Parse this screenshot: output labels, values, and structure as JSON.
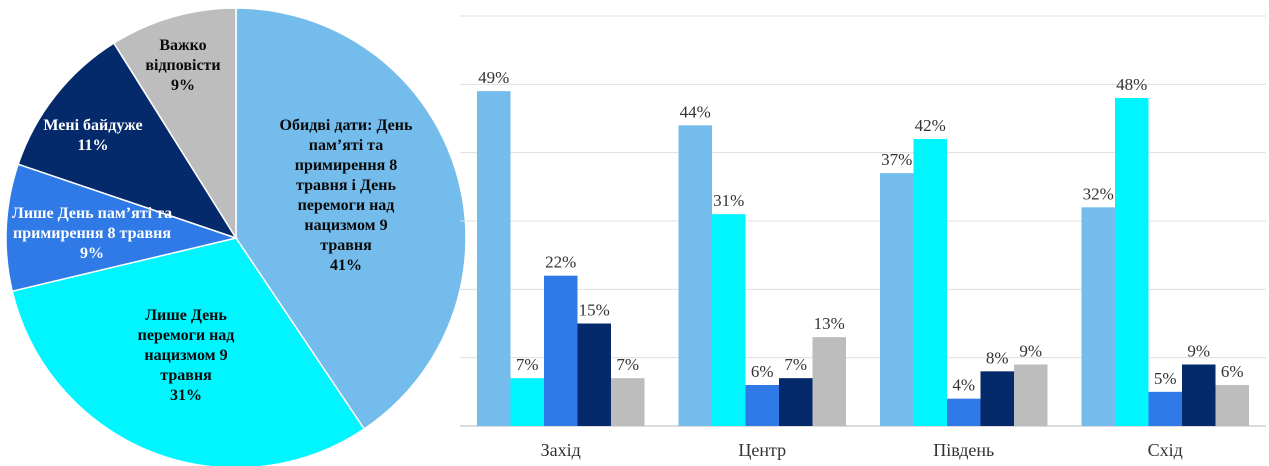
{
  "chart_data": [
    {
      "type": "pie",
      "slices": [
        {
          "label_lines": [
            "Обидві дати: День",
            "пам’яті та",
            "примирення 8",
            "травня і День",
            "перемоги над",
            "нацизмом 9",
            "травня"
          ],
          "value_text": "41%",
          "value": 41,
          "color": "#74bcec",
          "text_color": "#0a0a0a"
        },
        {
          "label_lines": [
            "Лише День",
            "перемоги над",
            "нацизмом 9",
            "травня"
          ],
          "value_text": "31%",
          "value": 31,
          "color": "#00f5ff",
          "text_color": "#0a0a0a"
        },
        {
          "label_lines": [
            "Лише День пам’яті та",
            "примирення 8 травня"
          ],
          "value_text": "9%",
          "value": 9,
          "color": "#2f7ae6",
          "text_color": "#ffffff"
        },
        {
          "label_lines": [
            "Мені байдуже"
          ],
          "value_text": "11%",
          "value": 11,
          "color": "#052a6c",
          "text_color": "#ffffff"
        },
        {
          "label_lines": [
            "Важко",
            "відповісти"
          ],
          "value_text": "9%",
          "value": 9,
          "color": "#bdbdbd",
          "text_color": "#0a0a0a"
        }
      ]
    },
    {
      "type": "bar",
      "categories": [
        "Захід",
        "Центр",
        "Південь",
        "Схід"
      ],
      "series": [
        {
          "values": [
            49,
            44,
            37,
            32
          ],
          "labels": [
            "49%",
            "44%",
            "37%",
            "32%"
          ],
          "color": "#74bcec"
        },
        {
          "values": [
            7,
            31,
            42,
            48
          ],
          "labels": [
            "7%",
            "31%",
            "42%",
            "48%"
          ],
          "color": "#00f5ff"
        },
        {
          "values": [
            22,
            6,
            4,
            5
          ],
          "labels": [
            "22%",
            "6%",
            "4%",
            "5%"
          ],
          "color": "#2f7ae6"
        },
        {
          "values": [
            15,
            7,
            8,
            9
          ],
          "labels": [
            "15%",
            "7%",
            "8%",
            "9%"
          ],
          "color": "#052a6c"
        },
        {
          "values": [
            7,
            13,
            9,
            6
          ],
          "labels": [
            "7%",
            "13%",
            "9%",
            "6%"
          ],
          "color": "#bdbdbd"
        }
      ],
      "ylim": [
        0,
        60
      ],
      "grid": true
    }
  ]
}
